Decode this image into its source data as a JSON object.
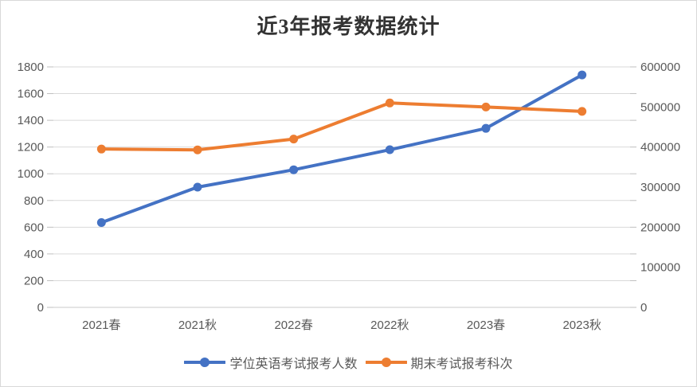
{
  "title": "近3年报考数据统计",
  "chart_data": {
    "type": "line",
    "title": "近3年报考数据统计",
    "categories": [
      "2021春",
      "2021秋",
      "2022春",
      "2022秋",
      "2023春",
      "2023秋"
    ],
    "series": [
      {
        "name": "学位英语考试报考人数",
        "axis": "left",
        "color": "#4472C4",
        "values": [
          635,
          900,
          1030,
          1180,
          1340,
          1740
        ]
      },
      {
        "name": "期末考试报考科次",
        "axis": "right",
        "color": "#ED7D31",
        "values": [
          395000,
          393000,
          420000,
          510000,
          500000,
          489000
        ]
      }
    ],
    "left_axis": {
      "min": 0,
      "max": 1800,
      "step": 200,
      "tick_labels": [
        "0",
        "200",
        "400",
        "600",
        "800",
        "1000",
        "1200",
        "1400",
        "1600",
        "1800"
      ]
    },
    "right_axis": {
      "min": 0,
      "max": 600000,
      "step": 100000,
      "tick_labels": [
        "0",
        "100000",
        "200000",
        "300000",
        "400000",
        "500000",
        "600000"
      ]
    },
    "grid": true,
    "legend_position": "bottom",
    "marker": "circle"
  },
  "colors": {
    "background": "#FFFFFF",
    "border": "#D9D9D9",
    "gridline": "#D9D9D9",
    "tick_mark": "#BFBFBF",
    "axis_line": "#C9C9C9",
    "axis_text": "#595959",
    "title_text": "#333333",
    "series_blue": "#4472C4",
    "series_orange": "#ED7D31"
  }
}
